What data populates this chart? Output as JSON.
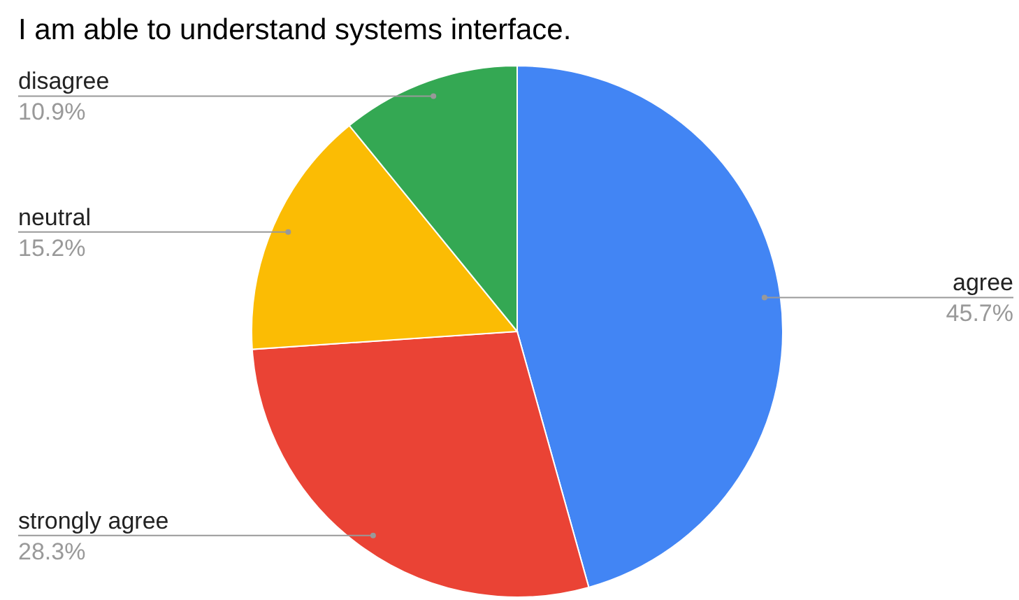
{
  "chart_data": {
    "type": "pie",
    "title": "I am able to understand systems interface.",
    "categories": [
      "agree",
      "strongly agree",
      "neutral",
      "disagree"
    ],
    "values": [
      45.7,
      28.3,
      15.2,
      10.9
    ],
    "colors": [
      "#4285f4",
      "#ea4335",
      "#fbbc04",
      "#34a853"
    ],
    "value_labels": [
      "45.7%",
      "28.3%",
      "15.2%",
      "10.9%"
    ],
    "legend": false
  }
}
